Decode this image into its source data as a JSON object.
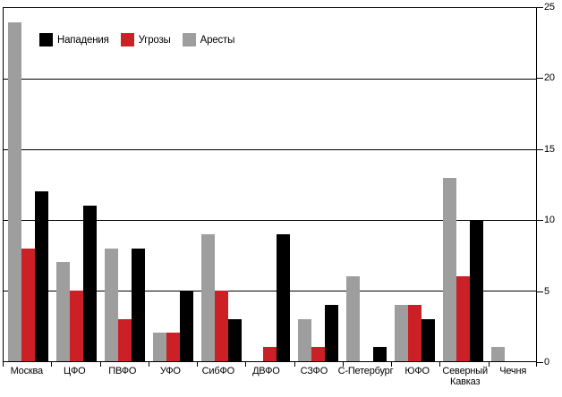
{
  "chart_data": {
    "type": "bar",
    "title": "",
    "categories": [
      "Москва",
      "ЦФО",
      "ПВФО",
      "УФО",
      "СибФО",
      "ДВФО",
      "СЗФО",
      "С-Петербург",
      "ЮФО",
      "Северный Кавказ",
      "Чечня"
    ],
    "series": [
      {
        "name": "Нападения",
        "color": "#000000",
        "values": [
          12,
          11,
          8,
          5,
          3,
          9,
          4,
          1,
          3,
          10,
          0
        ]
      },
      {
        "name": "Угрозы",
        "color": "#cb2026",
        "values": [
          8,
          5,
          3,
          2,
          5,
          1,
          1,
          0,
          4,
          6,
          0
        ]
      },
      {
        "name": "Аресты",
        "color": "#9e9e9e",
        "values": [
          24,
          7,
          8,
          2,
          9,
          0,
          3,
          6,
          4,
          13,
          1
        ]
      }
    ],
    "bar_order": [
      "Аресты",
      "Угрозы",
      "Нападения"
    ],
    "ylim": [
      0,
      25
    ],
    "yticks": [
      0,
      5,
      10,
      15,
      20,
      25
    ],
    "y_axis_side": "right",
    "xlabel": "",
    "ylabel": "",
    "legend_position": "top-left",
    "grid": true
  }
}
